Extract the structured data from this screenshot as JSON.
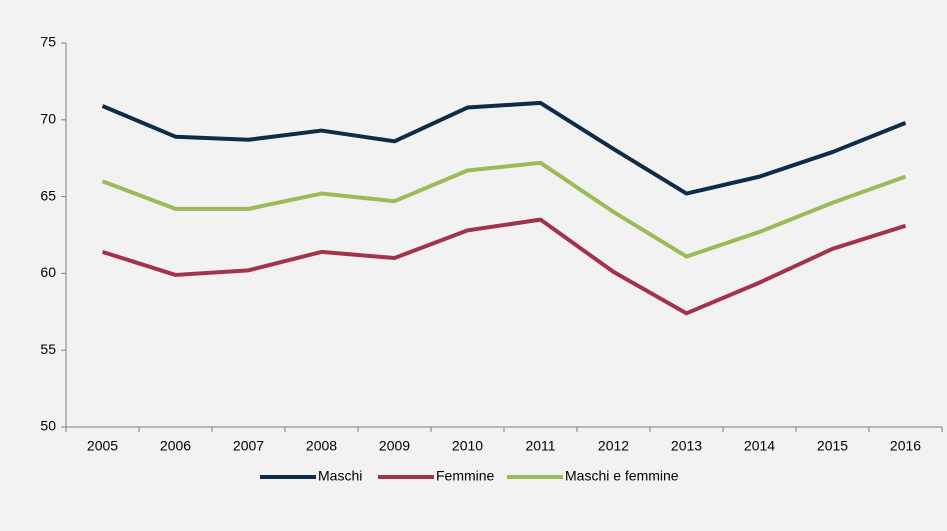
{
  "chart_data": {
    "type": "line",
    "categories": [
      "2005",
      "2006",
      "2007",
      "2008",
      "2009",
      "2010",
      "2011",
      "2012",
      "2013",
      "2014",
      "2015",
      "2016"
    ],
    "series": [
      {
        "name": "Maschi",
        "color": "#0e2c48",
        "values": [
          70.9,
          68.9,
          68.7,
          69.3,
          68.6,
          70.8,
          71.1,
          68.1,
          65.2,
          66.3,
          67.9,
          69.8
        ]
      },
      {
        "name": "Femmine",
        "color": "#a3324c",
        "values": [
          61.4,
          59.9,
          60.2,
          61.4,
          61.0,
          62.8,
          63.5,
          60.1,
          57.4,
          59.4,
          61.6,
          63.1
        ]
      },
      {
        "name": "Maschi e femmine",
        "color": "#9bbb59",
        "values": [
          66.0,
          64.2,
          64.2,
          65.2,
          64.7,
          66.7,
          67.2,
          64.0,
          61.1,
          62.7,
          64.6,
          66.3
        ]
      }
    ],
    "ylim": [
      50,
      75
    ],
    "yticks": [
      50,
      55,
      60,
      65,
      70,
      75
    ],
    "legend": "bottom"
  }
}
